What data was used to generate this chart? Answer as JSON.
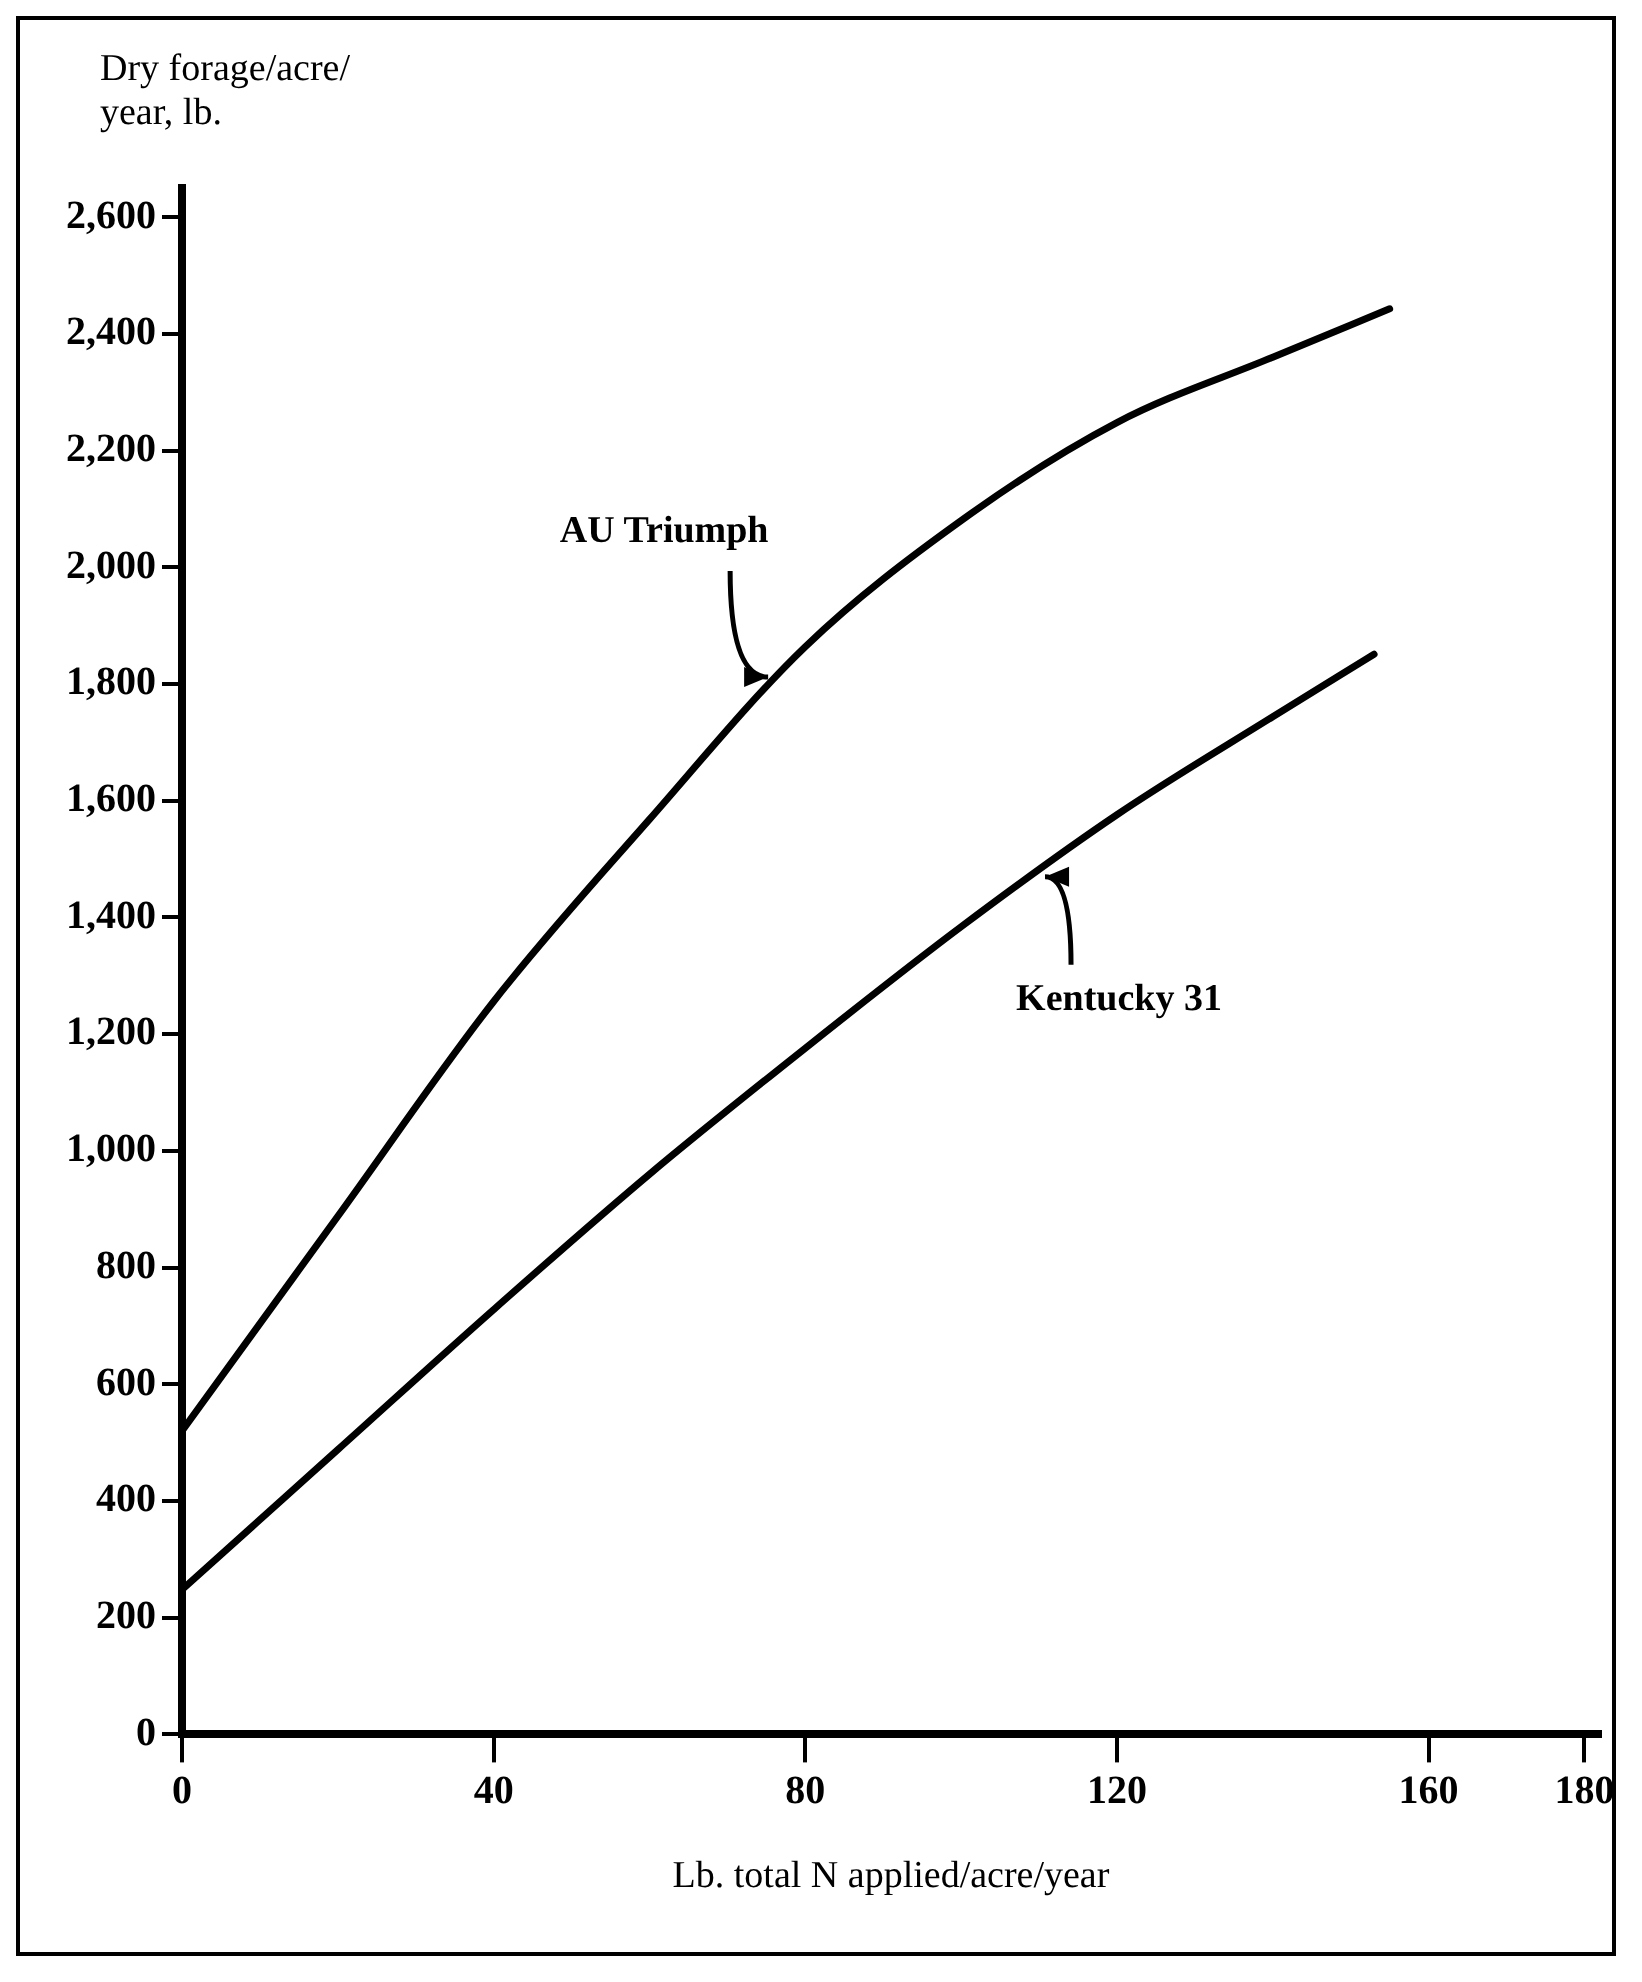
{
  "chart_data": {
    "type": "line",
    "ylabel": "Dry forage/acre/\nyear, lb.",
    "xlabel": "Lb. total N applied/acre/year",
    "xlim": [
      0,
      182
    ],
    "ylim": [
      0,
      2650
    ],
    "xticks": [
      0,
      40,
      80,
      120,
      160,
      180
    ],
    "yticks": [
      0,
      200,
      400,
      600,
      800,
      {
        "value": 1000,
        "label": "1,000"
      },
      {
        "value": 1200,
        "label": "1,200"
      },
      {
        "value": 1400,
        "label": "1,400"
      },
      {
        "value": 1600,
        "label": "1,600"
      },
      {
        "value": 1800,
        "label": "1,800"
      },
      {
        "value": 2000,
        "label": "2,000"
      },
      {
        "value": 2200,
        "label": "2,200"
      },
      {
        "value": 2400,
        "label": "2,400"
      },
      {
        "value": 2600,
        "label": "2,600"
      }
    ],
    "grid": false,
    "legend": false,
    "marker": "none",
    "line_style": "solid",
    "series": [
      {
        "color": "#000000",
        "x": [
          0,
          20,
          40,
          60,
          80,
          100,
          120,
          140,
          155
        ],
        "values": [
          520,
          888,
          1256,
          1568,
          1864,
          2080,
          2248,
          2360,
          2443
        ]
      },
      {
        "color": "#000000",
        "x": [
          0,
          20,
          40,
          60,
          80,
          100,
          120,
          140,
          153
        ],
        "values": [
          248,
          488,
          728,
          960,
          1176,
          1384,
          1576,
          1744,
          1851
        ]
      }
    ],
    "annotations": [
      {
        "text": "AU Triumph",
        "x": 76,
        "y": 1805
      },
      {
        "text": "Kentucky 31",
        "x": 110,
        "y": 1480
      }
    ]
  }
}
